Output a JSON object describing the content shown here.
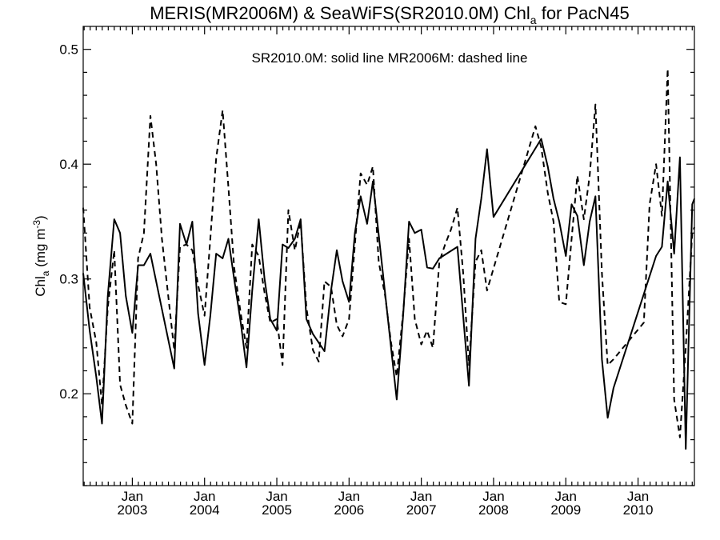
{
  "chart_data": {
    "type": "line",
    "title": {
      "prefix": "MERIS(MR2006M) & SeaWiFS(SR2010.0M)  Chl",
      "subscript": "a",
      "suffix": " for PacN45"
    },
    "annotation": "SR2010.0M: solid line   MR2006M: dashed line",
    "ylabel": {
      "base": "Chl",
      "subscript": "a",
      "unit_prefix": " (mg m",
      "superscript": "-3",
      "unit_suffix": ")"
    },
    "xlim": [
      2002.32,
      2010.78
    ],
    "ylim": [
      0.12,
      0.52
    ],
    "y_ticks": [
      {
        "value": 0.2,
        "label": "0.2"
      },
      {
        "value": 0.3,
        "label": "0.3"
      },
      {
        "value": 0.4,
        "label": "0.4"
      },
      {
        "value": 0.5,
        "label": "0.5"
      }
    ],
    "x_ticks": [
      {
        "value": 2003.0,
        "month": "Jan",
        "year": "2003"
      },
      {
        "value": 2004.0,
        "month": "Jan",
        "year": "2004"
      },
      {
        "value": 2005.0,
        "month": "Jan",
        "year": "2005"
      },
      {
        "value": 2006.0,
        "month": "Jan",
        "year": "2006"
      },
      {
        "value": 2007.0,
        "month": "Jan",
        "year": "2007"
      },
      {
        "value": 2008.0,
        "month": "Jan",
        "year": "2008"
      },
      {
        "value": 2009.0,
        "month": "Jan",
        "year": "2009"
      },
      {
        "value": 2010.0,
        "month": "Jan",
        "year": "2010"
      }
    ],
    "series": [
      {
        "style": "solid",
        "x": [
          2002.32,
          2002.41,
          2002.5,
          2002.58,
          2002.66,
          2002.75,
          2002.83,
          2002.91,
          2003.0,
          2003.08,
          2003.16,
          2003.25,
          2003.58,
          2003.66,
          2003.75,
          2003.83,
          2003.91,
          2004.0,
          2004.08,
          2004.16,
          2004.25,
          2004.33,
          2004.41,
          2004.5,
          2004.58,
          2004.66,
          2004.75,
          2004.83,
          2004.91,
          2005.0,
          2005.08,
          2005.16,
          2005.25,
          2005.33,
          2005.41,
          2005.5,
          2005.66,
          2005.75,
          2005.83,
          2005.91,
          2006.0,
          2006.08,
          2006.16,
          2006.25,
          2006.33,
          2006.66,
          2006.75,
          2006.83,
          2006.91,
          2007.0,
          2007.08,
          2007.16,
          2007.25,
          2007.5,
          2007.66,
          2007.75,
          2007.83,
          2007.91,
          2008.0,
          2008.66,
          2008.75,
          2008.83,
          2008.91,
          2009.0,
          2009.08,
          2009.16,
          2009.25,
          2009.33,
          2009.41,
          2009.5,
          2009.58,
          2009.66,
          2010.25,
          2010.33,
          2010.41,
          2010.5,
          2010.58,
          2010.66,
          2010.75,
          2010.78
        ],
        "y": [
          0.305,
          0.255,
          0.215,
          0.174,
          0.285,
          0.352,
          0.34,
          0.285,
          0.253,
          0.312,
          0.312,
          0.322,
          0.222,
          0.348,
          0.33,
          0.35,
          0.27,
          0.225,
          0.268,
          0.322,
          0.318,
          0.335,
          0.3,
          0.262,
          0.223,
          0.29,
          0.352,
          0.3,
          0.265,
          0.255,
          0.33,
          0.327,
          0.335,
          0.352,
          0.265,
          0.252,
          0.237,
          0.29,
          0.325,
          0.298,
          0.28,
          0.34,
          0.372,
          0.348,
          0.385,
          0.195,
          0.27,
          0.35,
          0.34,
          0.343,
          0.31,
          0.309,
          0.318,
          0.328,
          0.207,
          0.335,
          0.37,
          0.413,
          0.354,
          0.422,
          0.398,
          0.37,
          0.35,
          0.32,
          0.365,
          0.355,
          0.312,
          0.35,
          0.372,
          0.23,
          0.179,
          0.205,
          0.32,
          0.328,
          0.385,
          0.322,
          0.406,
          0.152,
          0.365,
          0.37
        ]
      },
      {
        "style": "dashed",
        "x": [
          2002.32,
          2002.41,
          2002.5,
          2002.58,
          2002.66,
          2002.75,
          2002.83,
          2002.91,
          2003.0,
          2003.08,
          2003.16,
          2003.25,
          2003.33,
          2003.41,
          2003.58,
          2003.66,
          2003.75,
          2003.83,
          2003.91,
          2004.0,
          2004.08,
          2004.16,
          2004.25,
          2004.33,
          2004.41,
          2004.5,
          2004.58,
          2004.66,
          2004.75,
          2004.83,
          2004.91,
          2005.0,
          2005.08,
          2005.16,
          2005.25,
          2005.33,
          2005.41,
          2005.5,
          2005.58,
          2005.66,
          2005.75,
          2005.83,
          2005.91,
          2006.0,
          2006.08,
          2006.16,
          2006.25,
          2006.33,
          2006.41,
          2006.5,
          2006.58,
          2006.66,
          2006.75,
          2006.83,
          2006.91,
          2007.0,
          2007.08,
          2007.16,
          2007.25,
          2007.33,
          2007.41,
          2007.5,
          2007.58,
          2007.66,
          2007.75,
          2007.83,
          2007.91,
          2008.58,
          2008.66,
          2008.75,
          2008.83,
          2008.91,
          2009.0,
          2009.08,
          2009.16,
          2009.25,
          2009.33,
          2009.41,
          2009.5,
          2009.58,
          2009.66,
          2010.08,
          2010.16,
          2010.25,
          2010.33,
          2010.41,
          2010.5,
          2010.58,
          2010.66,
          2010.75,
          2010.78
        ],
        "y": [
          0.362,
          0.275,
          0.245,
          0.19,
          0.275,
          0.325,
          0.208,
          0.19,
          0.174,
          0.318,
          0.34,
          0.442,
          0.4,
          0.335,
          0.238,
          0.328,
          0.33,
          0.325,
          0.295,
          0.268,
          0.335,
          0.405,
          0.447,
          0.38,
          0.31,
          0.27,
          0.24,
          0.33,
          0.32,
          0.288,
          0.262,
          0.265,
          0.225,
          0.36,
          0.325,
          0.35,
          0.275,
          0.238,
          0.228,
          0.298,
          0.293,
          0.26,
          0.25,
          0.265,
          0.33,
          0.392,
          0.382,
          0.398,
          0.315,
          0.285,
          0.245,
          0.215,
          0.272,
          0.335,
          0.265,
          0.243,
          0.255,
          0.24,
          0.315,
          0.33,
          0.343,
          0.362,
          0.305,
          0.225,
          0.315,
          0.325,
          0.29,
          0.433,
          0.415,
          0.375,
          0.35,
          0.28,
          0.278,
          0.335,
          0.39,
          0.352,
          0.39,
          0.452,
          0.305,
          0.225,
          0.23,
          0.262,
          0.365,
          0.4,
          0.355,
          0.483,
          0.195,
          0.162,
          0.24,
          0.34,
          0.345
        ]
      }
    ]
  }
}
